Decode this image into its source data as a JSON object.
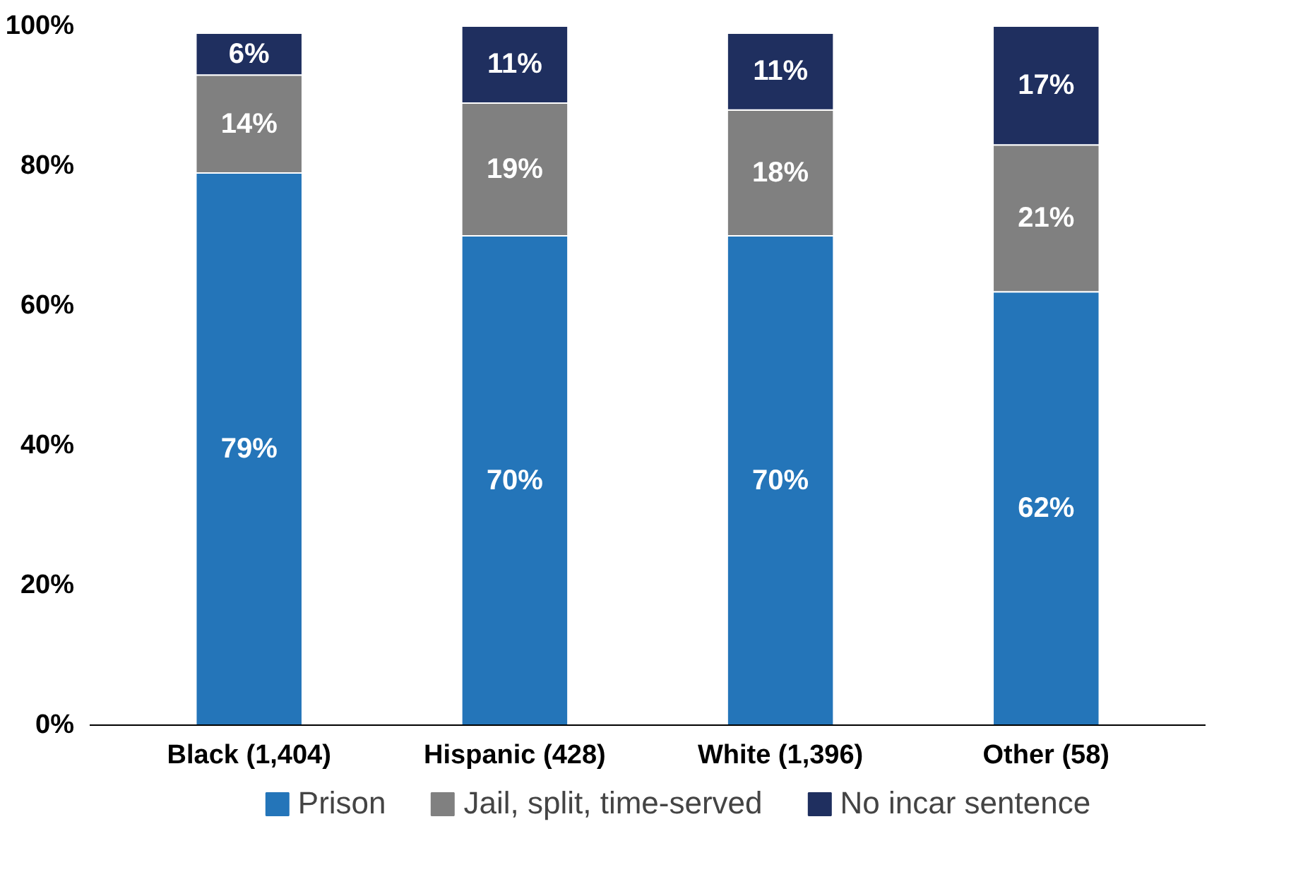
{
  "chart_data": {
    "type": "bar",
    "stacked": true,
    "categories": [
      "Black (1,404)",
      "Hispanic (428)",
      "White (1,396)",
      "Other (58)"
    ],
    "series": [
      {
        "name": "Prison",
        "color": "#2475b9",
        "values": [
          79,
          70,
          70,
          62
        ],
        "value_labels": [
          "79%",
          "70%",
          "70%",
          "62%"
        ]
      },
      {
        "name": "Jail, split, time-served",
        "color": "#808080",
        "values": [
          14,
          19,
          18,
          21
        ],
        "value_labels": [
          "14%",
          "19%",
          "18%",
          "21%"
        ]
      },
      {
        "name": "No incar sentence",
        "color": "#1f2f5f",
        "values": [
          6,
          11,
          11,
          17
        ],
        "value_labels": [
          "6%",
          "11%",
          "11%",
          "17%"
        ]
      }
    ],
    "ylim": [
      0,
      100
    ],
    "yticks": [
      {
        "value": 0,
        "label": "0%"
      },
      {
        "value": 20,
        "label": "20%"
      },
      {
        "value": 40,
        "label": "40%"
      },
      {
        "value": 60,
        "label": "60%"
      },
      {
        "value": 80,
        "label": "80%"
      },
      {
        "value": 100,
        "label": "100%"
      }
    ],
    "grid": false,
    "legend": "bottom"
  }
}
